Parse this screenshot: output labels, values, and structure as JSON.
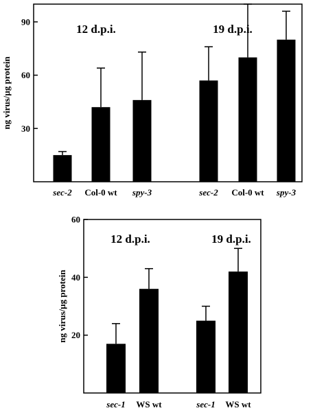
{
  "chart_data": [
    {
      "type": "bar",
      "ylabel": "ng virus/µg protein",
      "ylim": [
        0,
        100
      ],
      "yticks": [
        30,
        60,
        90
      ],
      "groups": [
        {
          "annotation": "12 d.p.i.",
          "categories": [
            {
              "label": "sec-2",
              "italic": true
            },
            {
              "label": "Col-0 wt",
              "italic": false
            },
            {
              "label": "spy-3",
              "italic": true
            }
          ],
          "values": [
            15,
            42,
            46
          ],
          "errors": [
            2,
            22,
            27
          ]
        },
        {
          "annotation": "19 d.p.i.",
          "categories": [
            {
              "label": "sec-2",
              "italic": true
            },
            {
              "label": "Col-0 wt",
              "italic": false
            },
            {
              "label": "spy-3",
              "italic": true
            }
          ],
          "values": [
            57,
            70,
            80
          ],
          "errors": [
            19,
            30,
            16
          ]
        }
      ]
    },
    {
      "type": "bar",
      "ylabel": "ng virus/µg protein",
      "ylim": [
        0,
        60
      ],
      "yticks": [
        20,
        40,
        60
      ],
      "groups": [
        {
          "annotation": "12 d.p.i.",
          "categories": [
            {
              "label": "sec-1",
              "italic": true
            },
            {
              "label": "WS wt",
              "italic": false
            }
          ],
          "values": [
            17,
            36
          ],
          "errors": [
            7,
            7
          ]
        },
        {
          "annotation": "19 d.p.i.",
          "categories": [
            {
              "label": "sec-1",
              "italic": true
            },
            {
              "label": "WS wt",
              "italic": false
            }
          ],
          "values": [
            25,
            42
          ],
          "errors": [
            5,
            8
          ]
        }
      ]
    }
  ],
  "style": {
    "bar_color": "#000000",
    "axis_color": "#000000"
  }
}
